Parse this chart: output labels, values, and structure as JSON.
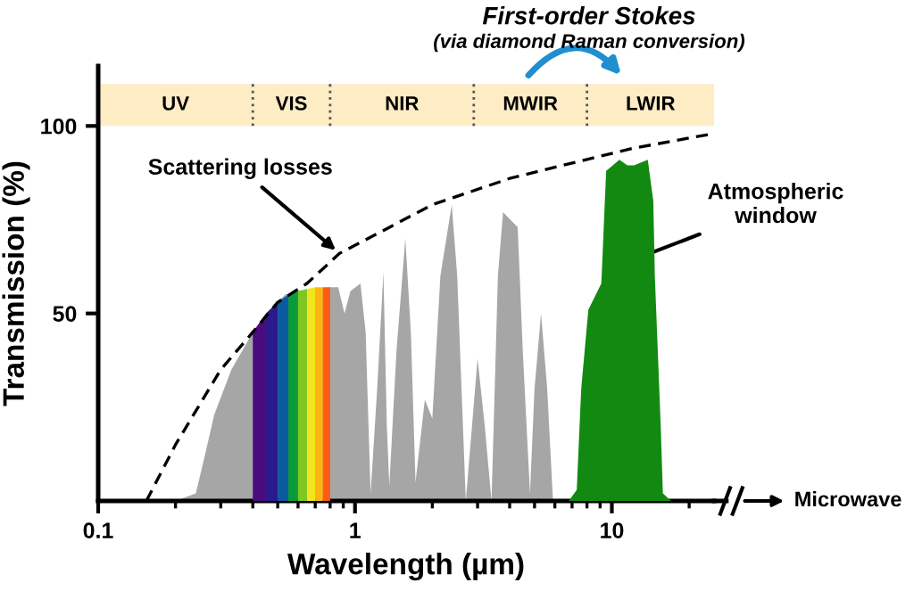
{
  "chart_data": {
    "type": "area",
    "xlabel": "Wavelength (µm)",
    "ylabel": "Transmission (%)",
    "log": "x",
    "xlim": [
      0.1,
      25
    ],
    "xticks": [
      0.1,
      1,
      10
    ],
    "ylim": [
      0,
      116
    ],
    "yticks": [
      50,
      100
    ],
    "series": [
      {
        "color": "#a6a6a6",
        "x": [
          0.2,
          0.24,
          0.26,
          0.283,
          0.33,
          0.4,
          0.45,
          0.535,
          0.8,
          0.86,
          0.91,
          0.96,
          1.05,
          1.1,
          1.15,
          1.22,
          1.29,
          1.33,
          1.36,
          1.45,
          1.57,
          1.65,
          1.72,
          1.87,
          2.0,
          2.15,
          2.38,
          2.5,
          2.7,
          3.0,
          3.2,
          3.4,
          3.6,
          3.77,
          4.3,
          4.5,
          4.8,
          5.0,
          5.3,
          5.6,
          5.9
        ],
        "values": [
          0,
          2,
          12,
          23,
          35,
          45,
          50,
          55,
          57,
          57,
          50,
          56,
          58,
          45,
          2,
          30,
          61,
          20,
          4,
          40,
          70,
          45,
          5,
          27,
          22,
          60,
          79,
          60,
          0,
          38,
          20,
          0,
          60,
          77,
          73,
          40,
          2,
          30,
          50,
          30,
          0
        ]
      },
      {
        "type": "area",
        "color": "#4b0a7d",
        "x": [
          0.4,
          0.45
        ],
        "values": [
          45,
          50
        ]
      },
      {
        "type": "area",
        "color": "#2a1a8c",
        "x": [
          0.45,
          0.5
        ],
        "values": [
          50,
          53
        ]
      },
      {
        "type": "area",
        "color": "#0a5aa0",
        "x": [
          0.5,
          0.55
        ],
        "values": [
          53,
          55
        ]
      },
      {
        "type": "area",
        "color": "#0a9a3a",
        "x": [
          0.55,
          0.6
        ],
        "values": [
          55,
          56
        ]
      },
      {
        "type": "area",
        "color": "#7cc81e",
        "x": [
          0.6,
          0.65
        ],
        "values": [
          56,
          56.5
        ]
      },
      {
        "type": "area",
        "color": "#f0e61e",
        "x": [
          0.65,
          0.7
        ],
        "values": [
          56.5,
          57
        ]
      },
      {
        "type": "area",
        "color": "#ffb414",
        "x": [
          0.7,
          0.75
        ],
        "values": [
          57,
          57
        ]
      },
      {
        "type": "area",
        "color": "#ff5a14",
        "x": [
          0.75,
          0.8
        ],
        "values": [
          57,
          57
        ]
      },
      {
        "type": "area",
        "color": "#128a12",
        "x": [
          6.8,
          7.3,
          7.6,
          8.1,
          9.1,
          9.5,
          10.7,
          11.5,
          12.2,
          13.8,
          14.5,
          14.7,
          15.5,
          15.8,
          17
        ],
        "values": [
          0,
          3,
          30,
          51,
          58,
          88,
          91,
          89.5,
          89.5,
          91,
          80,
          60,
          20,
          2,
          0
        ]
      },
      {
        "type": "line",
        "color": "#000000",
        "line_style": "dashed",
        "x": [
          0.154,
          0.2,
          0.3,
          0.4,
          0.5,
          0.65,
          0.87,
          1.2,
          2,
          4,
          6.9,
          12,
          25
        ],
        "values": [
          0,
          15,
          35,
          45,
          53,
          58,
          66,
          71,
          79,
          86,
          90,
          94,
          98
        ]
      }
    ],
    "bands": [
      {
        "axis": "x",
        "from": 0.1,
        "to": 0.4,
        "label": "UV",
        "color": "#fdecc4"
      },
      {
        "axis": "x",
        "from": 0.4,
        "to": 0.8,
        "label": "VIS",
        "color": "#fdecc4"
      },
      {
        "axis": "x",
        "from": 0.8,
        "to": 2.9,
        "label": "NIR",
        "color": "#fdecc4"
      },
      {
        "axis": "x",
        "from": 2.9,
        "to": 8,
        "label": "MWIR",
        "color": "#fdecc4"
      },
      {
        "axis": "x",
        "from": 8,
        "to": 25,
        "label": "LWIR",
        "color": "#fdecc4"
      }
    ],
    "annotations": [
      "First-order Stokes",
      "(via diamond Raman conversion)",
      {
        "text": "Scattering losses",
        "x": 0.87,
        "y": 66
      },
      "Atmospheric\nwindow",
      "Microwave"
    ]
  }
}
